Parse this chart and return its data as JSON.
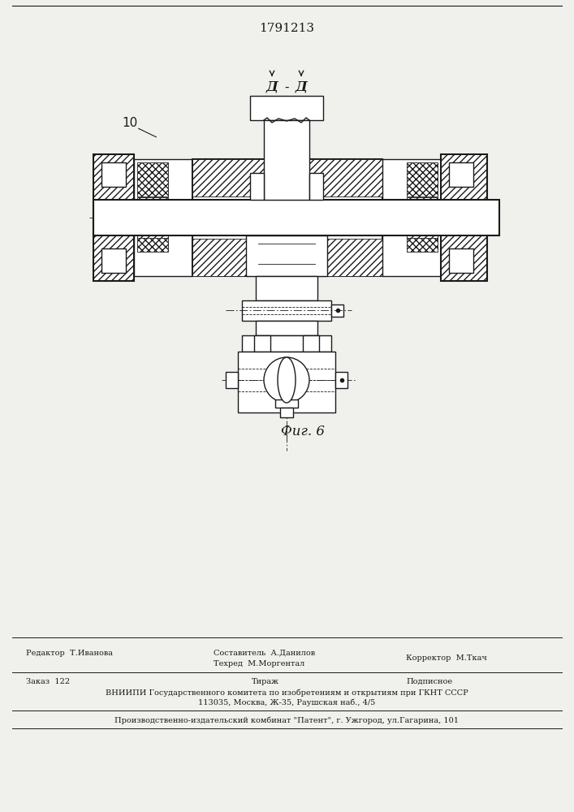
{
  "patent_number": "1791213",
  "fig_label": "Фиг. 6",
  "section_label": "Д - Д",
  "part_number": "10",
  "background_color": "#f0f0ec",
  "line_color": "#1a1a1a",
  "footer_editor": "Редактор  Т.Иванова",
  "footer_composer": "Составитель  А.Данилов",
  "footer_tech": "Техред  М.Моргентал",
  "footer_corrector": "Корректор  М.Ткач",
  "footer_order": "Заказ  122",
  "footer_tirazh": "Тираж",
  "footer_podpisnoe": "Подписное",
  "footer_vniipи": "ВНИИПИ Государственного комитета по изобретениям и открытиям при ГКНТ СССР",
  "footer_address": "113035, Москва, Ж-35, Раушская наб., 4/5",
  "footer_patent": "Производственно-издательский комбинат \"Патент\", г. Ужгород, ул.Гагарина, 101"
}
